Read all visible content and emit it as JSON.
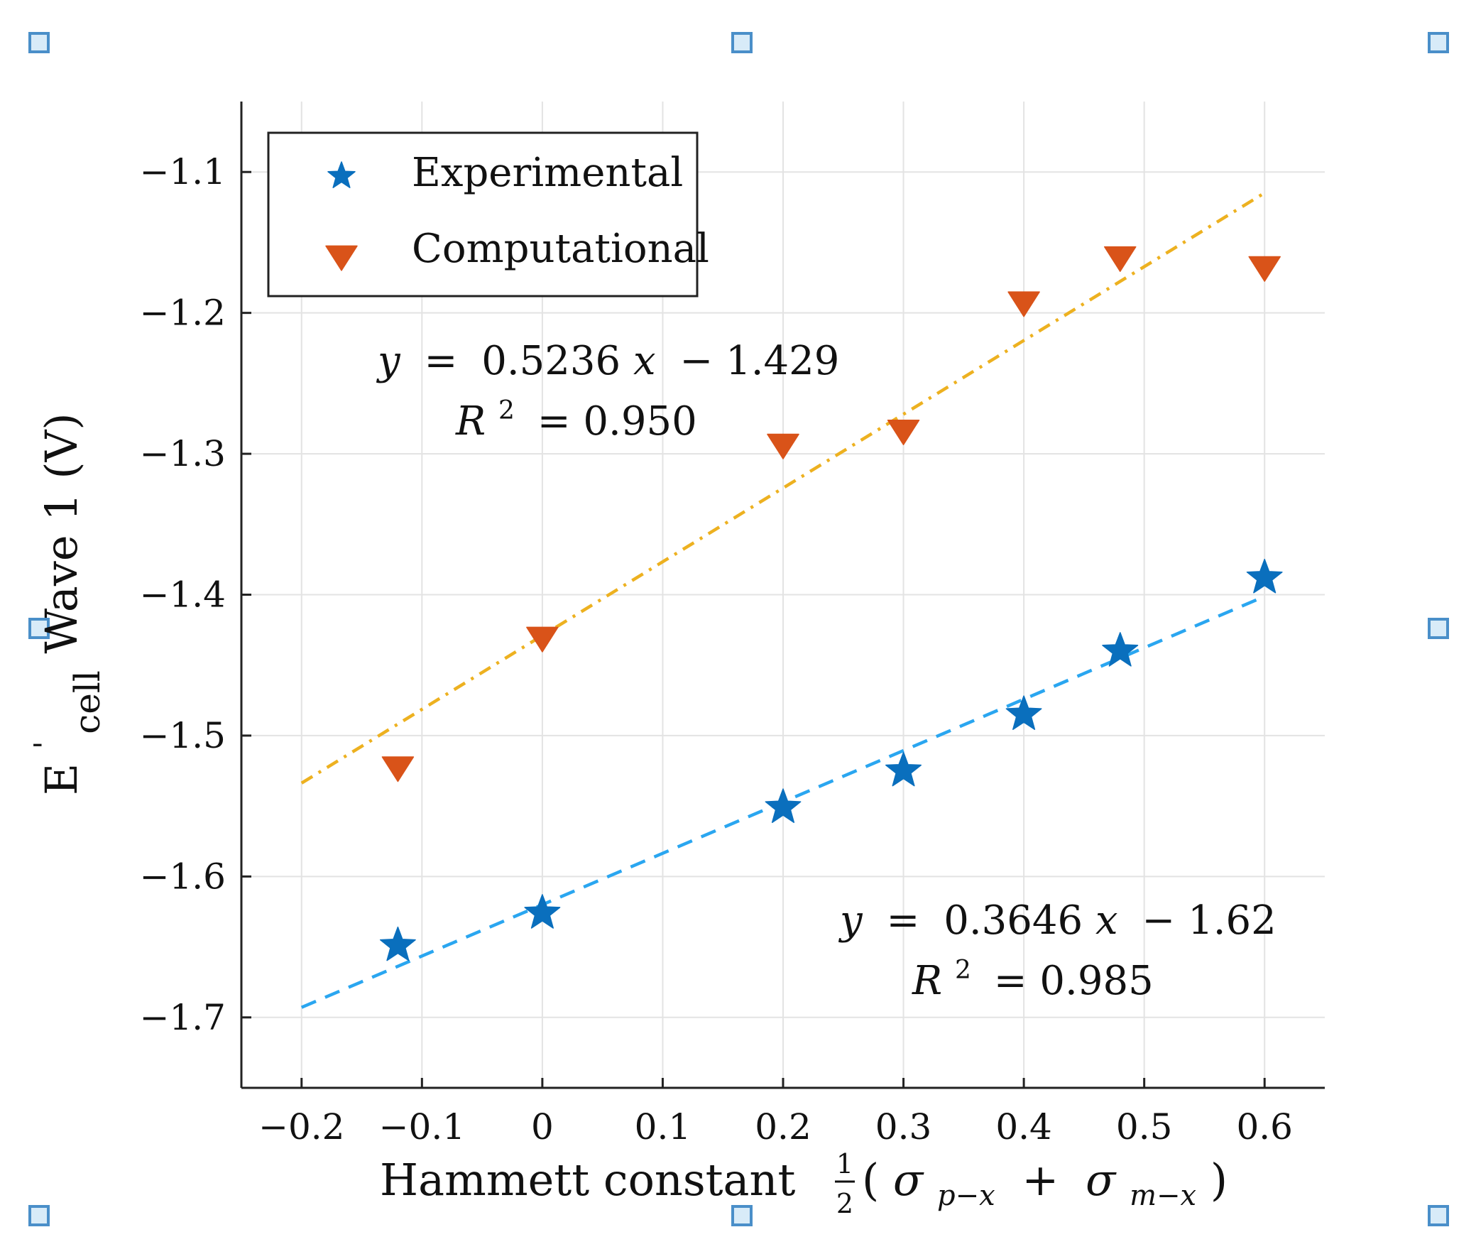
{
  "chart_data": {
    "type": "scatter",
    "x_label_text": "Hammett constant",
    "x_label_math": {
      "frac_num": "1",
      "frac_den": "2",
      "open": "(",
      "s1": "σ",
      "s1_sub": "p−x",
      "plus": "+",
      "s2": "σ",
      "s2_sub": "m−x",
      "close": ")"
    },
    "y_label": {
      "main": "E",
      "prime": "'",
      "sub": "cell",
      "rest": "Wave 1 (V)"
    },
    "xlim": [
      -0.25,
      0.65
    ],
    "ylim": [
      -1.75,
      -1.05
    ],
    "x_ticks": [
      -0.2,
      -0.1,
      0,
      0.1,
      0.2,
      0.3,
      0.4,
      0.5,
      0.6
    ],
    "x_tick_labels": [
      "−0.2",
      "−0.1",
      "0",
      "0.1",
      "0.2",
      "0.3",
      "0.4",
      "0.5",
      "0.6"
    ],
    "y_ticks": [
      -1.1,
      -1.2,
      -1.3,
      -1.4,
      -1.5,
      -1.6,
      -1.7
    ],
    "y_tick_labels": [
      "−1.1",
      "−1.2",
      "−1.3",
      "−1.4",
      "−1.5",
      "−1.6",
      "−1.7"
    ],
    "grid": true,
    "legend_position": "top-left",
    "series": [
      {
        "name": "Experimental",
        "marker": "star",
        "color": "#0a6fbd",
        "points": [
          {
            "x": -0.12,
            "y": -1.649
          },
          {
            "x": 0.0,
            "y": -1.626
          },
          {
            "x": 0.2,
            "y": -1.551
          },
          {
            "x": 0.3,
            "y": -1.525
          },
          {
            "x": 0.4,
            "y": -1.485
          },
          {
            "x": 0.48,
            "y": -1.44
          },
          {
            "x": 0.6,
            "y": -1.388
          }
        ],
        "fit": {
          "slope": 0.3646,
          "intercept": -1.62,
          "x_range": [
            -0.2,
            0.6
          ],
          "color": "#2aa6f0"
        },
        "equation": {
          "lhs": "y",
          "eq": "=",
          "coef": "0.3646",
          "var": "x",
          "const": "− 1.62",
          "r2_label": "R",
          "r2_sup": "2",
          "r2_value": "= 0.985"
        }
      },
      {
        "name": "Computational",
        "marker": "triangle-down",
        "color": "#d95319",
        "points": [
          {
            "x": -0.12,
            "y": -1.522
          },
          {
            "x": 0.0,
            "y": -1.43
          },
          {
            "x": 0.2,
            "y": -1.293
          },
          {
            "x": 0.3,
            "y": -1.283
          },
          {
            "x": 0.4,
            "y": -1.192
          },
          {
            "x": 0.48,
            "y": -1.16
          },
          {
            "x": 0.6,
            "y": -1.167
          }
        ],
        "fit": {
          "slope": 0.5236,
          "intercept": -1.429,
          "x_range": [
            -0.2,
            0.6
          ],
          "color": "#edb120"
        },
        "equation": {
          "lhs": "y",
          "eq": "=",
          "coef": "0.5236",
          "var": "x",
          "const": "− 1.429",
          "r2_label": "R",
          "r2_sup": "2",
          "r2_value": "= 0.950"
        }
      }
    ]
  },
  "decor": {
    "handle_color": "#4a8fc9",
    "handle_fill": "#d8ebf8"
  }
}
